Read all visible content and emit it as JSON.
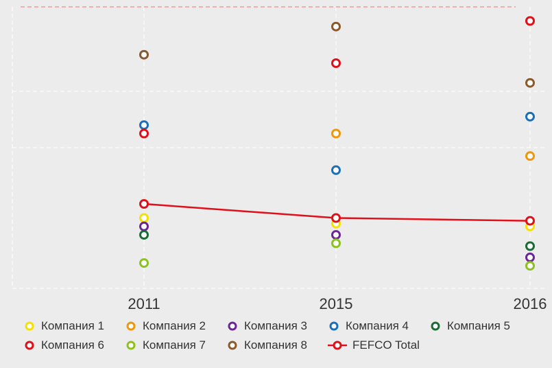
{
  "chart_data": {
    "type": "scatter",
    "x_categories": [
      "2011",
      "2015",
      "2016"
    ],
    "ylim": [
      0,
      100
    ],
    "grid": true,
    "legend_position": "bottom",
    "series": [
      {
        "name": "Компания 1",
        "color": "#f5e000",
        "values": [
          25,
          23,
          22
        ]
      },
      {
        "name": "Компания 2",
        "color": "#f0960a",
        "values": [
          null,
          55,
          47
        ]
      },
      {
        "name": "Компания 3",
        "color": "#6c2496",
        "values": [
          22,
          19,
          11
        ]
      },
      {
        "name": "Компания 4",
        "color": "#1a6fb8",
        "values": [
          58,
          42,
          61
        ]
      },
      {
        "name": "Компания 5",
        "color": "#1a6b34",
        "values": [
          19,
          null,
          15
        ]
      },
      {
        "name": "Компания 6",
        "color": "#e0101a",
        "values": [
          55,
          80,
          95
        ]
      },
      {
        "name": "Компания 7",
        "color": "#8cc21e",
        "values": [
          9,
          16,
          8
        ]
      },
      {
        "name": "Компания 8",
        "color": "#8b5a2b",
        "values": [
          83,
          93,
          73
        ]
      },
      {
        "name": "FEFCO Total",
        "color": "#e0101a",
        "values": [
          30,
          25,
          24
        ],
        "style": "line"
      }
    ]
  }
}
